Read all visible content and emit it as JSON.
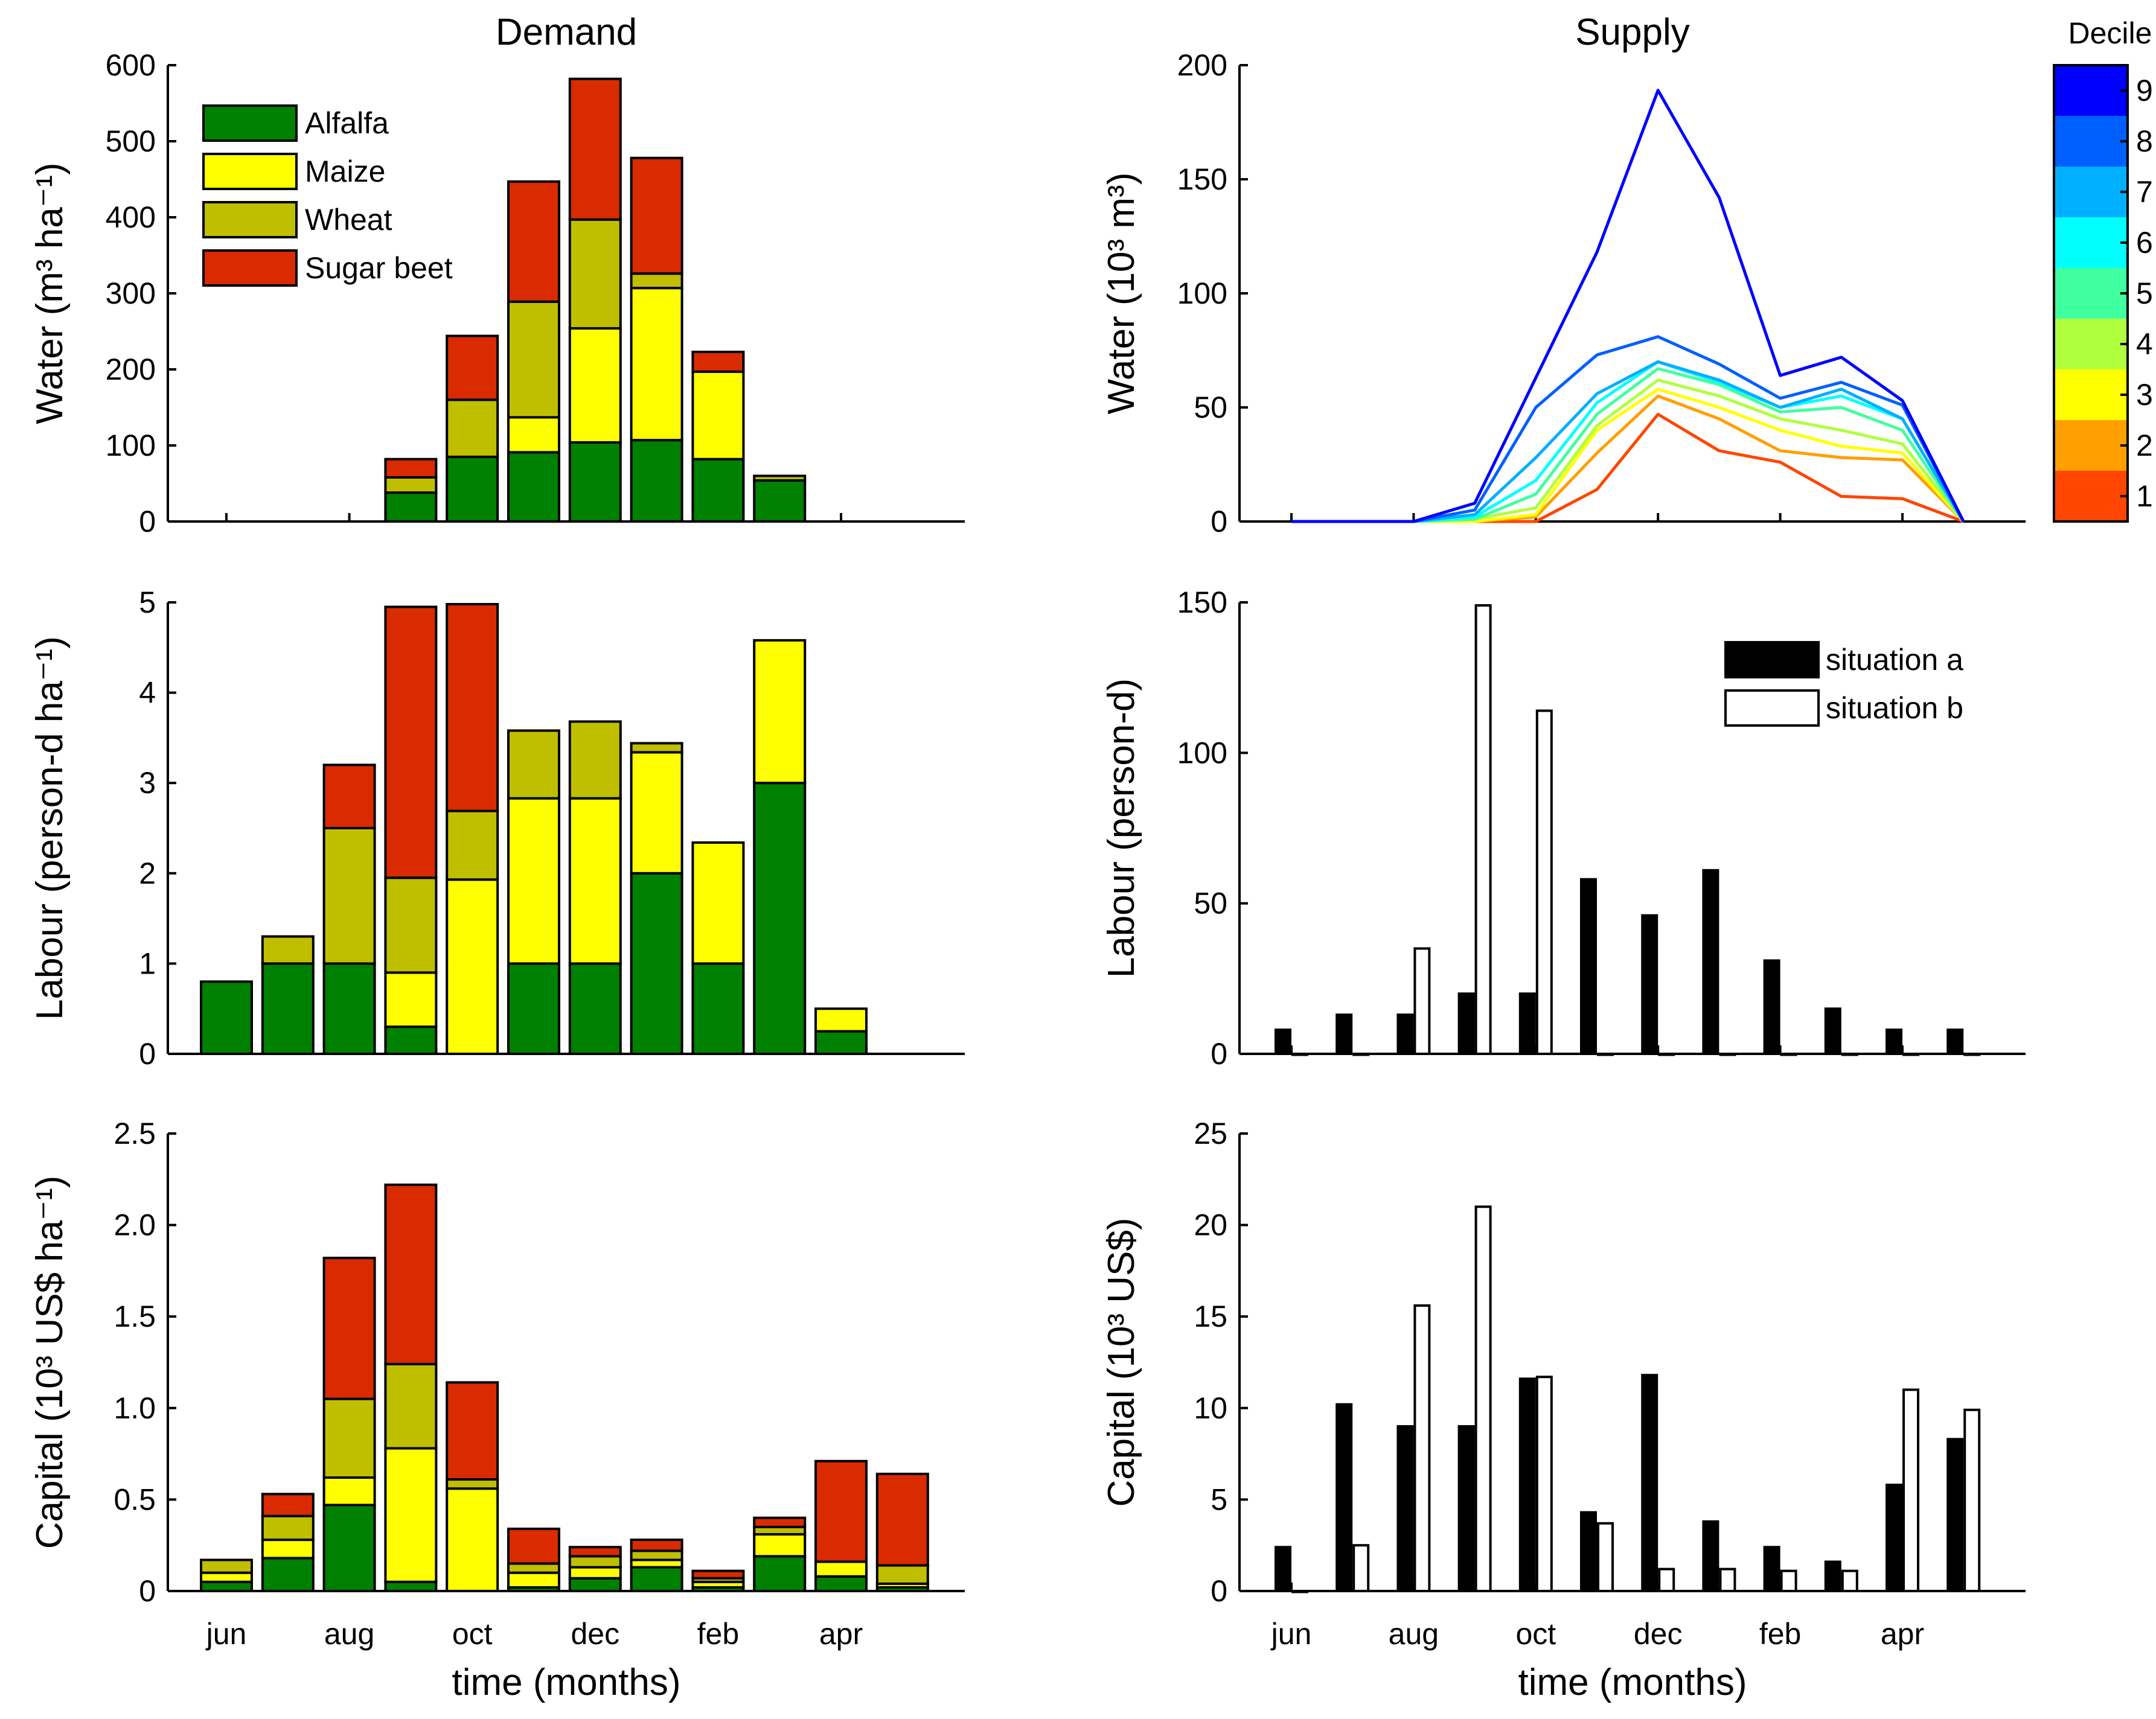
{
  "figure": {
    "months": [
      "jun",
      "jul",
      "aug",
      "sep",
      "oct",
      "nov",
      "dec",
      "jan",
      "feb",
      "mar",
      "apr",
      "may"
    ],
    "month_ticks": [
      "jun",
      "aug",
      "oct",
      "dec",
      "feb",
      "apr"
    ],
    "xlabel": "time (months)",
    "colors": {
      "Alfalfa": "#008000",
      "Maize": "#ffff00",
      "Wheat": "#bfbf00",
      "Sugar beet": "#d92a00",
      "situation a": "#000000",
      "situation b": "#ffffff"
    }
  },
  "chart_data": [
    {
      "id": "demand-water",
      "type": "bar",
      "stacked": true,
      "title": "Demand",
      "ylabel": "Water (m³ ha⁻¹)",
      "ylim": [
        0,
        600
      ],
      "yticks": [
        "0",
        "100",
        "200",
        "300",
        "400",
        "500",
        "600"
      ],
      "legend": [
        "Alfalfa",
        "Maize",
        "Wheat",
        "Sugar beet"
      ],
      "legend_location": "top-left",
      "categories": [
        "jun",
        "jul",
        "aug",
        "sep",
        "oct",
        "nov",
        "dec",
        "jan",
        "feb",
        "mar",
        "apr",
        "may"
      ],
      "series": [
        {
          "name": "Alfalfa",
          "values": [
            0,
            0,
            0,
            38,
            85,
            91,
            104,
            107,
            82,
            54,
            0,
            0
          ]
        },
        {
          "name": "Maize",
          "values": [
            0,
            0,
            0,
            0,
            0,
            46,
            150,
            200,
            115,
            0,
            0,
            0
          ]
        },
        {
          "name": "Wheat",
          "values": [
            0,
            0,
            0,
            20,
            75,
            152,
            143,
            19,
            0,
            6,
            0,
            0
          ]
        },
        {
          "name": "Sugar beet",
          "values": [
            0,
            0,
            0,
            24,
            84,
            158,
            185,
            152,
            26,
            0,
            0,
            0
          ]
        }
      ]
    },
    {
      "id": "supply-water",
      "type": "line",
      "title": "Supply",
      "ylabel": "Water (10³ m³)",
      "ylim": [
        0,
        200
      ],
      "yticks": [
        "0",
        "50",
        "100",
        "150",
        "200"
      ],
      "colorbar": {
        "title": "Decile",
        "labels": [
          "1",
          "2",
          "3",
          "4",
          "5",
          "6",
          "7",
          "8",
          "9"
        ]
      },
      "categories": [
        "jun",
        "jul",
        "aug",
        "sep",
        "oct",
        "nov",
        "dec",
        "jan",
        "feb",
        "mar",
        "apr",
        "may"
      ],
      "series": [
        {
          "name": "1",
          "color": "#ff4500",
          "values": [
            0,
            0,
            0,
            0,
            0,
            14,
            47,
            31,
            26,
            11,
            10,
            0
          ]
        },
        {
          "name": "2",
          "color": "#ff9f00",
          "values": [
            0,
            0,
            0,
            0,
            2,
            30,
            55,
            45,
            31,
            28,
            27,
            0
          ]
        },
        {
          "name": "3",
          "color": "#ffff00",
          "values": [
            0,
            0,
            0,
            0,
            3,
            40,
            58,
            50,
            40,
            33,
            30,
            0
          ]
        },
        {
          "name": "4",
          "color": "#b0ff3f",
          "values": [
            0,
            0,
            0,
            1,
            6,
            42,
            62,
            55,
            45,
            40,
            34,
            0
          ]
        },
        {
          "name": "5",
          "color": "#40ffa0",
          "values": [
            0,
            0,
            0,
            1,
            12,
            47,
            67,
            60,
            48,
            50,
            40,
            0
          ]
        },
        {
          "name": "6",
          "color": "#00ffff",
          "values": [
            0,
            0,
            0,
            2,
            18,
            52,
            70,
            61,
            50,
            55,
            45,
            0
          ]
        },
        {
          "name": "7",
          "color": "#00afff",
          "values": [
            0,
            0,
            0,
            3,
            28,
            56,
            70,
            62,
            50,
            58,
            45,
            0
          ]
        },
        {
          "name": "8",
          "color": "#005fff",
          "values": [
            0,
            0,
            0,
            5,
            50,
            73,
            81,
            69,
            54,
            61,
            51,
            0
          ]
        },
        {
          "name": "9",
          "color": "#0000ff",
          "values": [
            0,
            0,
            0,
            8,
            63,
            118,
            189,
            142,
            64,
            72,
            53,
            0
          ]
        }
      ]
    },
    {
      "id": "demand-labour",
      "type": "bar",
      "stacked": true,
      "ylabel": "Labour (person-d ha⁻¹)",
      "ylim": [
        0,
        5
      ],
      "yticks": [
        "0",
        "1",
        "2",
        "3",
        "4",
        "5"
      ],
      "categories": [
        "jun",
        "jul",
        "aug",
        "sep",
        "oct",
        "nov",
        "dec",
        "jan",
        "feb",
        "mar",
        "apr",
        "may"
      ],
      "series": [
        {
          "name": "Alfalfa",
          "values": [
            0.8,
            1.0,
            1.0,
            0.3,
            0,
            1.0,
            1.0,
            2.0,
            1.0,
            3.0,
            0.25,
            0
          ]
        },
        {
          "name": "Maize",
          "values": [
            0,
            0,
            0,
            0.6,
            1.93,
            1.83,
            1.83,
            1.34,
            1.34,
            1.58,
            0.25,
            0
          ]
        },
        {
          "name": "Wheat",
          "values": [
            0,
            0.3,
            1.5,
            1.05,
            0.76,
            0.75,
            0.85,
            0.1,
            0,
            0,
            0,
            0
          ]
        },
        {
          "name": "Sugar beet",
          "values": [
            0,
            0,
            0.7,
            3.0,
            2.29,
            0,
            0,
            0,
            0,
            0,
            0,
            0
          ]
        }
      ]
    },
    {
      "id": "supply-labour",
      "type": "bar",
      "ylabel": "Labour (person-d)",
      "ylim": [
        0,
        150
      ],
      "yticks": [
        "0",
        "50",
        "100",
        "150"
      ],
      "legend": [
        "situation a",
        "situation b"
      ],
      "legend_location": "top-right",
      "categories": [
        "jun",
        "jul",
        "aug",
        "sep",
        "oct",
        "nov",
        "dec",
        "jan",
        "feb",
        "mar",
        "apr",
        "may"
      ],
      "series": [
        {
          "name": "situation a",
          "values": [
            8,
            13,
            13,
            20,
            20,
            58,
            46,
            61,
            31,
            15,
            8,
            8
          ]
        },
        {
          "name": "situation b",
          "values": [
            0,
            0,
            35,
            149,
            114,
            0,
            0,
            0,
            0,
            0,
            0,
            0
          ]
        }
      ]
    },
    {
      "id": "demand-capital",
      "type": "bar",
      "stacked": true,
      "ylabel": "Capital (10³ US$ ha⁻¹)",
      "ylim": [
        0,
        2.5
      ],
      "yticks": [
        "0",
        "0.5",
        "1.0",
        "1.5",
        "2.0",
        "2.5"
      ],
      "categories": [
        "jun",
        "jul",
        "aug",
        "sep",
        "oct",
        "nov",
        "dec",
        "jan",
        "feb",
        "mar",
        "apr",
        "may"
      ],
      "series": [
        {
          "name": "Alfalfa",
          "values": [
            0.05,
            0.18,
            0.47,
            0.05,
            0,
            0.02,
            0.07,
            0.13,
            0.02,
            0.19,
            0.08,
            0.02
          ]
        },
        {
          "name": "Maize",
          "values": [
            0.05,
            0.1,
            0.15,
            0.73,
            0.56,
            0.08,
            0.06,
            0.04,
            0.03,
            0.12,
            0.08,
            0.02
          ]
        },
        {
          "name": "Wheat",
          "values": [
            0.07,
            0.13,
            0.43,
            0.46,
            0.05,
            0.05,
            0.06,
            0.05,
            0.02,
            0.04,
            0,
            0.1
          ]
        },
        {
          "name": "Sugar beet",
          "values": [
            0,
            0.12,
            0.77,
            0.98,
            0.53,
            0.19,
            0.05,
            0.06,
            0.04,
            0.05,
            0.55,
            0.5
          ]
        }
      ]
    },
    {
      "id": "supply-capital",
      "type": "bar",
      "ylabel": "Capital (10³ US$)",
      "xlabel": "time (months)",
      "ylim": [
        0,
        25
      ],
      "yticks": [
        "0",
        "5",
        "10",
        "15",
        "20",
        "25"
      ],
      "categories": [
        "jun",
        "jul",
        "aug",
        "sep",
        "oct",
        "nov",
        "dec",
        "jan",
        "feb",
        "mar",
        "apr",
        "may"
      ],
      "series": [
        {
          "name": "situation a",
          "values": [
            2.4,
            10.2,
            9.0,
            9.0,
            11.6,
            4.3,
            11.8,
            3.8,
            2.4,
            1.6,
            5.8,
            8.3
          ]
        },
        {
          "name": "situation b",
          "values": [
            0,
            2.5,
            15.6,
            21.0,
            11.7,
            3.7,
            1.2,
            1.2,
            1.1,
            1.1,
            11.0,
            9.9
          ]
        }
      ]
    }
  ]
}
